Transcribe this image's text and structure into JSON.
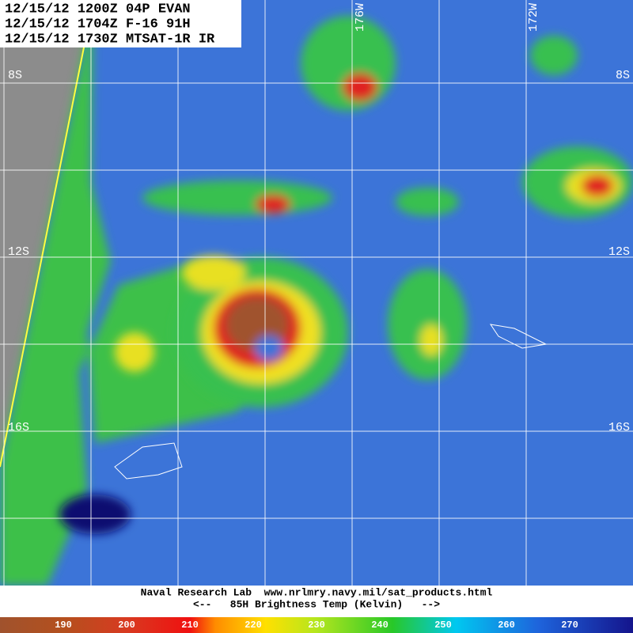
{
  "header": {
    "lines": [
      "12/15/12 1200Z 04P EVAN",
      "12/15/12 1704Z F-16 91H",
      "12/15/12 1730Z MTSAT-1R IR"
    ]
  },
  "grid_labels": {
    "latitudes": [
      "8S",
      "12S",
      "16S"
    ],
    "longitudes": [
      "176W",
      "172W"
    ]
  },
  "footer": {
    "credit": "Naval Research Lab  www.nrlmry.navy.mil/sat_products.html",
    "legend": "<--   85H Brightness Temp (Kelvin)   -->"
  },
  "colorbar": {
    "ticks": [
      190,
      200,
      210,
      220,
      230,
      240,
      250,
      260,
      270
    ]
  }
}
